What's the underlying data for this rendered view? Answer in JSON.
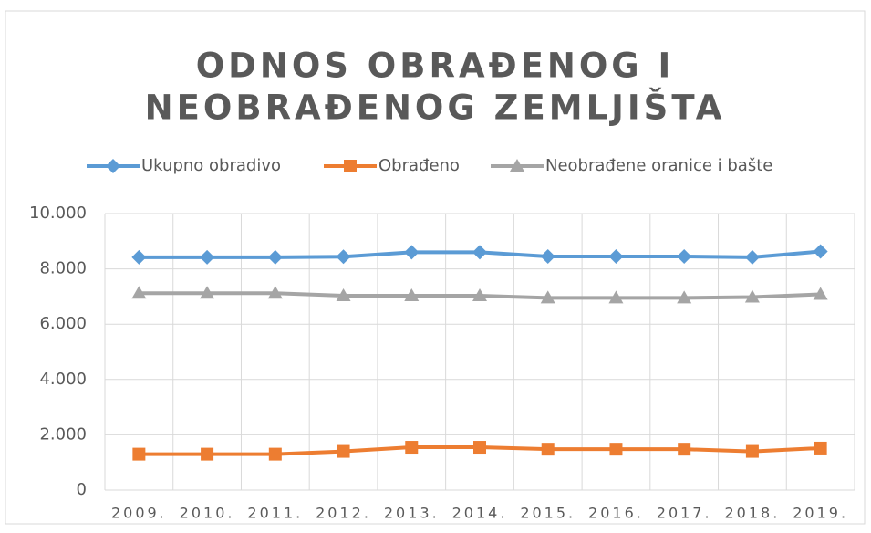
{
  "chart_data": {
    "type": "line",
    "title": [
      "ODNOS OBRAĐENOG I",
      "NEOBRAĐENOG ZEMLJIŠTA"
    ],
    "categories": [
      "2009.",
      "2010.",
      "2011.",
      "2012.",
      "2013.",
      "2014.",
      "2015.",
      "2016.",
      "2017.",
      "2018.",
      "2019."
    ],
    "series": [
      {
        "name": "Ukupno obradivo",
        "color": "#5b9bd5",
        "marker": "diamond",
        "values": [
          8420,
          8420,
          8420,
          8440,
          8600,
          8600,
          8450,
          8450,
          8450,
          8420,
          8630
        ]
      },
      {
        "name": "Obrađeno",
        "color": "#ed7d31",
        "marker": "square",
        "values": [
          1300,
          1300,
          1300,
          1400,
          1550,
          1550,
          1480,
          1480,
          1480,
          1400,
          1520
        ]
      },
      {
        "name": "Neobrađene oranice i bašte",
        "color": "#a5a5a5",
        "marker": "triangle",
        "values": [
          7120,
          7120,
          7120,
          7030,
          7030,
          7030,
          6950,
          6950,
          6950,
          6980,
          7080
        ]
      }
    ],
    "ylim": [
      0,
      10000
    ],
    "yticks": [
      0,
      {
        "value": 2000,
        "label": "2.000"
      },
      {
        "value": 4000,
        "label": "4.000"
      },
      {
        "value": 6000,
        "label": "6.000"
      },
      {
        "value": 8000,
        "label": "8.000"
      },
      {
        "value": 10000,
        "label": "10.000"
      }
    ],
    "grid": true,
    "legend": "top"
  }
}
